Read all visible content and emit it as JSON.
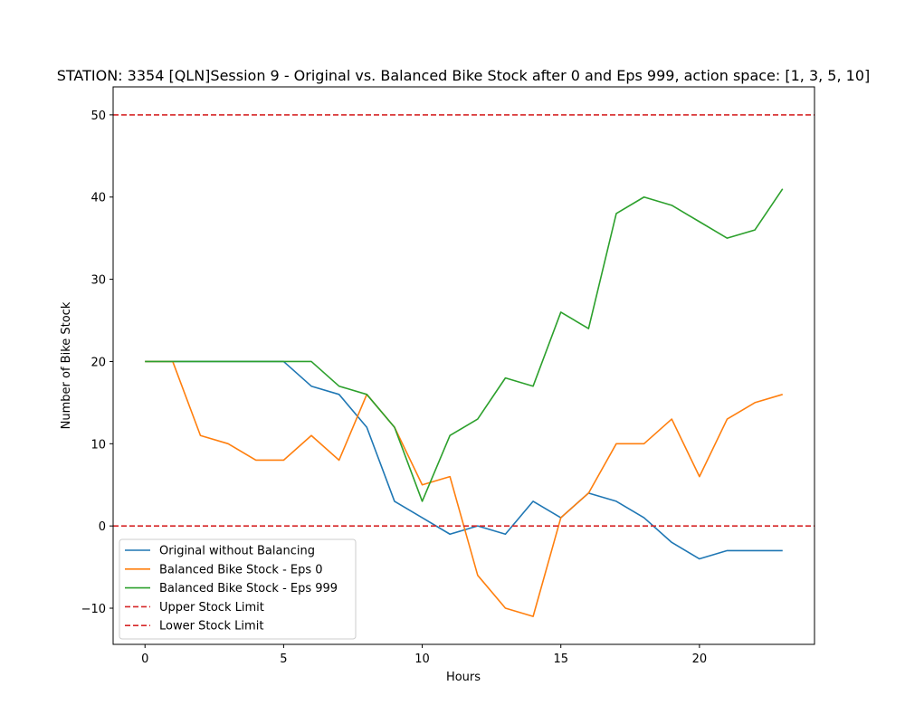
{
  "chart_data": {
    "type": "line",
    "title": "STATION: 3354 [QLN]Session 9 - Original vs. Balanced Bike Stock after 0 and Eps 999, action space: [1, 3, 5, 10]",
    "xlabel": "Hours",
    "ylabel": "Number of Bike Stock",
    "xlim": [
      -1.15,
      24.15
    ],
    "ylim": [
      -14.4,
      53.4
    ],
    "xticks": [
      0,
      5,
      10,
      15,
      20
    ],
    "yticks": [
      -10,
      0,
      10,
      20,
      30,
      40,
      50
    ],
    "x": [
      0,
      1,
      2,
      3,
      4,
      5,
      6,
      7,
      8,
      9,
      10,
      11,
      12,
      13,
      14,
      15,
      16,
      17,
      18,
      19,
      20,
      21,
      22,
      23
    ],
    "series": [
      {
        "name": "Original without Balancing",
        "color": "#1f77b4",
        "values": [
          20,
          20,
          20,
          20,
          20,
          20,
          17,
          16,
          12,
          3,
          1,
          -1,
          0,
          -1,
          3,
          1,
          4,
          3,
          1,
          -2,
          -4,
          -3,
          -3,
          -3
        ]
      },
      {
        "name": "Balanced Bike Stock - Eps 0",
        "color": "#ff7f0e",
        "values": [
          20,
          20,
          11,
          10,
          8,
          8,
          11,
          8,
          16,
          12,
          5,
          6,
          -6,
          -10,
          -11,
          1,
          4,
          10,
          10,
          13,
          6,
          13,
          15,
          16
        ]
      },
      {
        "name": "Balanced Bike Stock - Eps 999",
        "color": "#2ca02c",
        "values": [
          20,
          20,
          20,
          20,
          20,
          20,
          20,
          17,
          16,
          12,
          3,
          11,
          13,
          18,
          17,
          26,
          24,
          38,
          40,
          39,
          37,
          35,
          36,
          41
        ]
      }
    ],
    "hlines": [
      {
        "name": "Upper Stock Limit",
        "y": 50,
        "color": "#d62728",
        "style": "dashed"
      },
      {
        "name": "Lower Stock Limit",
        "y": 0,
        "color": "#d62728",
        "style": "dashed"
      }
    ],
    "legend_position": "lower-left",
    "grid": false
  }
}
